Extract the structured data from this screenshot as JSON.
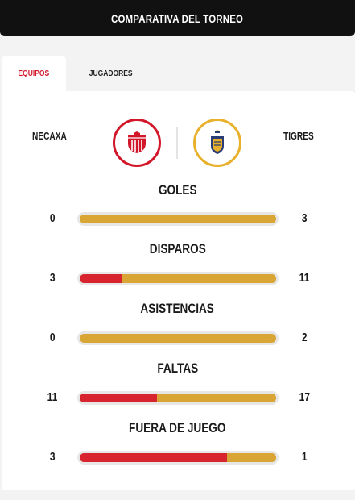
{
  "title": "COMPARATIVA DEL TORNEO",
  "tabs": [
    {
      "label": "EQUIPOS",
      "active": true
    },
    {
      "label": "JUGADORES",
      "active": false
    }
  ],
  "teams": {
    "home": {
      "name": "NECAXA",
      "color": "#d3172b",
      "logo_icon": "necaxa-crest-icon"
    },
    "away": {
      "name": "TIGRES",
      "color": "#e8b02b",
      "logo_icon": "tigres-crest-icon"
    }
  },
  "stats": [
    {
      "label": "GOLES",
      "home": 0,
      "away": 3
    },
    {
      "label": "DISPAROS",
      "home": 3,
      "away": 11
    },
    {
      "label": "ASISTENCIAS",
      "home": 0,
      "away": 2
    },
    {
      "label": "FALTAS",
      "home": 11,
      "away": 17
    },
    {
      "label": "FUERA DE JUEGO",
      "home": 3,
      "away": 1
    }
  ]
}
